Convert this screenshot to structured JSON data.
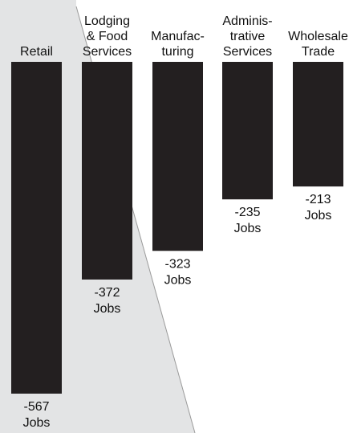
{
  "chart_data": {
    "type": "bar",
    "orientation": "vertical-downward",
    "categories": [
      [
        "Retail"
      ],
      [
        "Lodging",
        "& Food",
        "Services"
      ],
      [
        "Manufac-",
        "turing"
      ],
      [
        "Adminis-",
        "trative",
        "Services"
      ],
      [
        "Wholesale",
        "Trade"
      ]
    ],
    "values": [
      -567,
      -372,
      -323,
      -235,
      -213
    ],
    "value_unit": "Jobs",
    "title": "",
    "xlabel": "",
    "ylabel": "",
    "colors": {
      "bar": "#231f20",
      "background_wedge": "#e3e4e5",
      "wedge_edge": "#9a9a9a",
      "text": "#111111"
    }
  }
}
